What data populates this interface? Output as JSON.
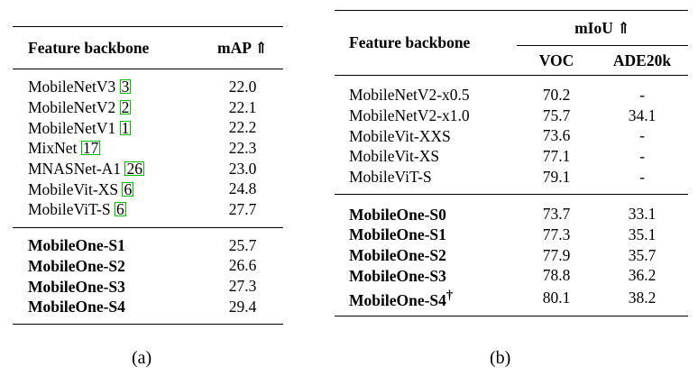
{
  "table_a": {
    "header": {
      "backbone": "Feature backbone",
      "metric": "mAP ⇑"
    },
    "group1": [
      {
        "name": "MobileNetV3",
        "cite": "3",
        "value": "22.0"
      },
      {
        "name": "MobileNetV2",
        "cite": "2",
        "value": "22.1"
      },
      {
        "name": "MobileNetV1",
        "cite": "1",
        "value": "22.2"
      },
      {
        "name": "MixNet",
        "cite": "17",
        "value": "22.3"
      },
      {
        "name": "MNASNet-A1",
        "cite": "26",
        "value": "23.0"
      },
      {
        "name": "MobileVit-XS",
        "cite": "6",
        "value": "24.8"
      },
      {
        "name": "MobileViT-S",
        "cite": "6",
        "value": "27.7"
      }
    ],
    "group2": [
      {
        "name": "MobileOne-S1",
        "value": "25.7"
      },
      {
        "name": "MobileOne-S2",
        "value": "26.6"
      },
      {
        "name": "MobileOne-S3",
        "value": "27.3"
      },
      {
        "name": "MobileOne-S4",
        "value": "29.4"
      }
    ],
    "caption": "(a)"
  },
  "table_b": {
    "header": {
      "backbone": "Feature backbone",
      "metric": "mIoU ⇑",
      "col1": "VOC",
      "col2": "ADE20k"
    },
    "group1": [
      {
        "name": "MobileNetV2-x0.5",
        "voc": "70.2",
        "ade": "-"
      },
      {
        "name": "MobileNetV2-x1.0",
        "voc": "75.7",
        "ade": "34.1"
      },
      {
        "name": "MobileVit-XXS",
        "voc": "73.6",
        "ade": "-"
      },
      {
        "name": "MobileVit-XS",
        "voc": "77.1",
        "ade": "-"
      },
      {
        "name": "MobileViT-S",
        "voc": "79.1",
        "ade": "-"
      }
    ],
    "group2": [
      {
        "name": "MobileOne-S0",
        "voc": "73.7",
        "ade": "33.1"
      },
      {
        "name": "MobileOne-S1",
        "voc": "77.3",
        "ade": "35.1"
      },
      {
        "name": "MobileOne-S2",
        "voc": "77.9",
        "ade": "35.7"
      },
      {
        "name": "MobileOne-S3",
        "voc": "78.8",
        "ade": "36.2"
      },
      {
        "name": "MobileOne-S4",
        "voc": "80.1",
        "ade": "38.2",
        "mark": "†"
      }
    ],
    "caption": "(b)"
  }
}
